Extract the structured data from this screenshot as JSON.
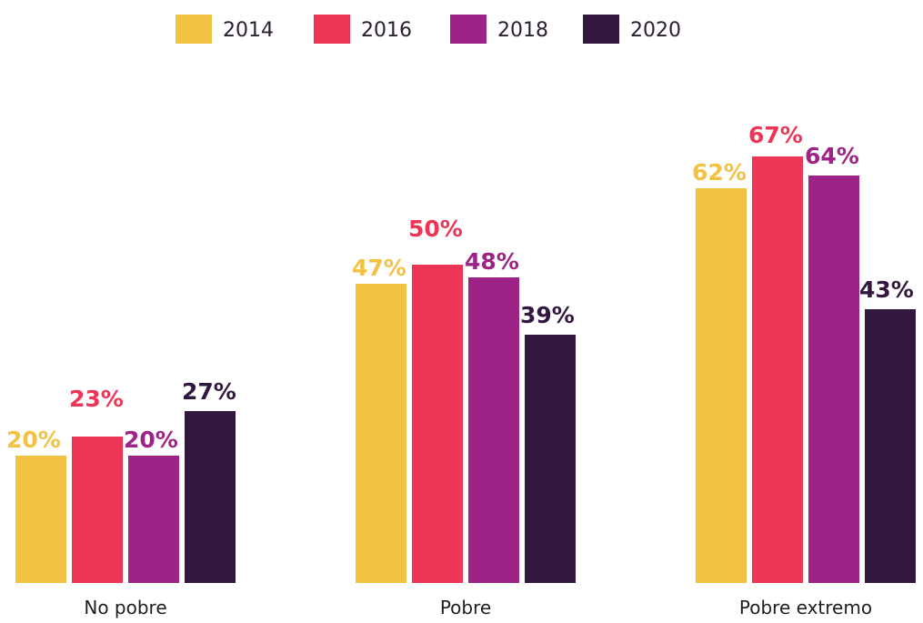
{
  "chart_data": {
    "type": "bar",
    "categories": [
      "No pobre",
      "Pobre",
      "Pobre extremo"
    ],
    "series": [
      {
        "name": "2014",
        "color": "#f3c242",
        "values": [
          20,
          47,
          62
        ],
        "labels": [
          "20%",
          "47%",
          "62%"
        ]
      },
      {
        "name": "2016",
        "color": "#ee3556",
        "values": [
          23,
          50,
          67
        ],
        "labels": [
          "23%",
          "50%",
          "67%"
        ]
      },
      {
        "name": "2018",
        "color": "#9d2486",
        "values": [
          20,
          48,
          64
        ],
        "labels": [
          "20%",
          "48%",
          "64%"
        ]
      },
      {
        "name": "2020",
        "color": "#32183f",
        "values": [
          27,
          39,
          43
        ],
        "labels": [
          "27%",
          "39%",
          "43%"
        ]
      }
    ],
    "title": "",
    "xlabel": "",
    "ylabel": "",
    "ylim": [
      0,
      100
    ],
    "grid": false,
    "legend": "top"
  }
}
